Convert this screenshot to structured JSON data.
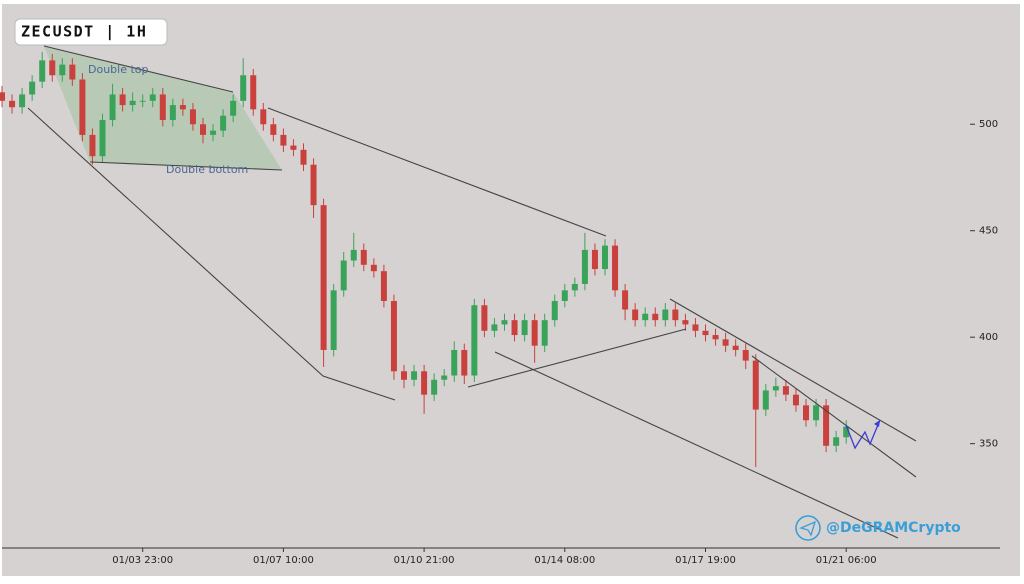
{
  "chart_data": {
    "type": "candlestick",
    "title": "ZECUSDT | 1H",
    "annotations": [
      "Double top",
      "Double bottom"
    ],
    "watermark": "@DeGRAMCrypto",
    "up_color": "#3aa35a",
    "down_color": "#c9403c",
    "categories": [
      null,
      null,
      null,
      null,
      null,
      null,
      null,
      null,
      null,
      null,
      null,
      null,
      null,
      null,
      "01/03 23:00",
      null,
      null,
      null,
      null,
      null,
      null,
      null,
      null,
      null,
      null,
      null,
      null,
      null,
      "01/07 10:00",
      null,
      null,
      null,
      null,
      null,
      null,
      null,
      null,
      null,
      null,
      null,
      null,
      null,
      "01/10 21:00",
      null,
      null,
      null,
      null,
      null,
      null,
      null,
      null,
      null,
      null,
      null,
      null,
      null,
      "01/14 08:00",
      null,
      null,
      null,
      null,
      null,
      null,
      null,
      null,
      null,
      null,
      null,
      null,
      null,
      "01/17 19:00",
      null,
      null,
      null,
      null,
      null,
      null,
      null,
      null,
      null,
      null,
      null,
      null,
      null,
      "01/21 06:00"
    ],
    "open": [
      515,
      511,
      508,
      514,
      520,
      530,
      523,
      528,
      521,
      495,
      485,
      502,
      514,
      509,
      511,
      511,
      514,
      502,
      509,
      507,
      500,
      495,
      497,
      504,
      511,
      523,
      507,
      500,
      495,
      490,
      488,
      481,
      462,
      394,
      422,
      436,
      441,
      434,
      431,
      417,
      384,
      380,
      384,
      373,
      380,
      382,
      394,
      382,
      415,
      403,
      406,
      408,
      401,
      408,
      396,
      408,
      417,
      422,
      425,
      441,
      432,
      443,
      422,
      413,
      408,
      411,
      408,
      413,
      408,
      406,
      403,
      401,
      399,
      396,
      394,
      389,
      366,
      375,
      377,
      373,
      368,
      361,
      368,
      349,
      353
    ],
    "high": [
      518,
      514,
      517,
      523,
      534,
      533,
      531,
      531,
      524,
      498,
      505,
      519,
      517,
      515,
      514,
      517,
      517,
      512,
      512,
      510,
      503,
      500,
      507,
      514,
      531,
      526,
      510,
      503,
      498,
      493,
      491,
      484,
      465,
      425,
      440,
      449,
      444,
      437,
      434,
      420,
      387,
      387,
      387,
      383,
      385,
      398,
      397,
      418,
      418,
      409,
      411,
      411,
      411,
      411,
      411,
      420,
      425,
      428,
      449,
      444,
      446,
      446,
      425,
      416,
      414,
      414,
      416,
      416,
      411,
      409,
      406,
      404,
      402,
      399,
      397,
      392,
      378,
      381,
      380,
      376,
      371,
      371,
      371,
      356,
      361
    ],
    "low": [
      508,
      505,
      505,
      511,
      517,
      520,
      520,
      518,
      492,
      481,
      482,
      499,
      506,
      506,
      508,
      508,
      499,
      499,
      504,
      497,
      491,
      492,
      494,
      501,
      508,
      504,
      497,
      492,
      487,
      485,
      478,
      456,
      386,
      391,
      419,
      433,
      431,
      428,
      414,
      380,
      376,
      377,
      364,
      370,
      377,
      379,
      378,
      379,
      400,
      400,
      403,
      398,
      398,
      388,
      393,
      405,
      414,
      419,
      422,
      429,
      429,
      419,
      408,
      405,
      405,
      405,
      405,
      405,
      403,
      400,
      398,
      396,
      393,
      391,
      385,
      339,
      363,
      372,
      370,
      365,
      358,
      358,
      346,
      346,
      350
    ],
    "close": [
      511,
      508,
      514,
      520,
      530,
      523,
      528,
      521,
      495,
      485,
      502,
      514,
      509,
      511,
      511,
      514,
      502,
      509,
      507,
      500,
      495,
      497,
      504,
      511,
      523,
      507,
      500,
      495,
      490,
      488,
      481,
      462,
      394,
      422,
      436,
      441,
      434,
      431,
      417,
      384,
      380,
      384,
      373,
      380,
      382,
      394,
      382,
      415,
      403,
      406,
      408,
      401,
      408,
      396,
      408,
      417,
      422,
      425,
      441,
      432,
      443,
      422,
      413,
      408,
      411,
      408,
      413,
      408,
      406,
      403,
      401,
      399,
      396,
      394,
      389,
      366,
      375,
      377,
      373,
      368,
      361,
      368,
      349,
      353,
      358
    ],
    "ylim": [
      301,
      556
    ],
    "yticks": [
      350,
      400,
      450,
      500
    ]
  }
}
